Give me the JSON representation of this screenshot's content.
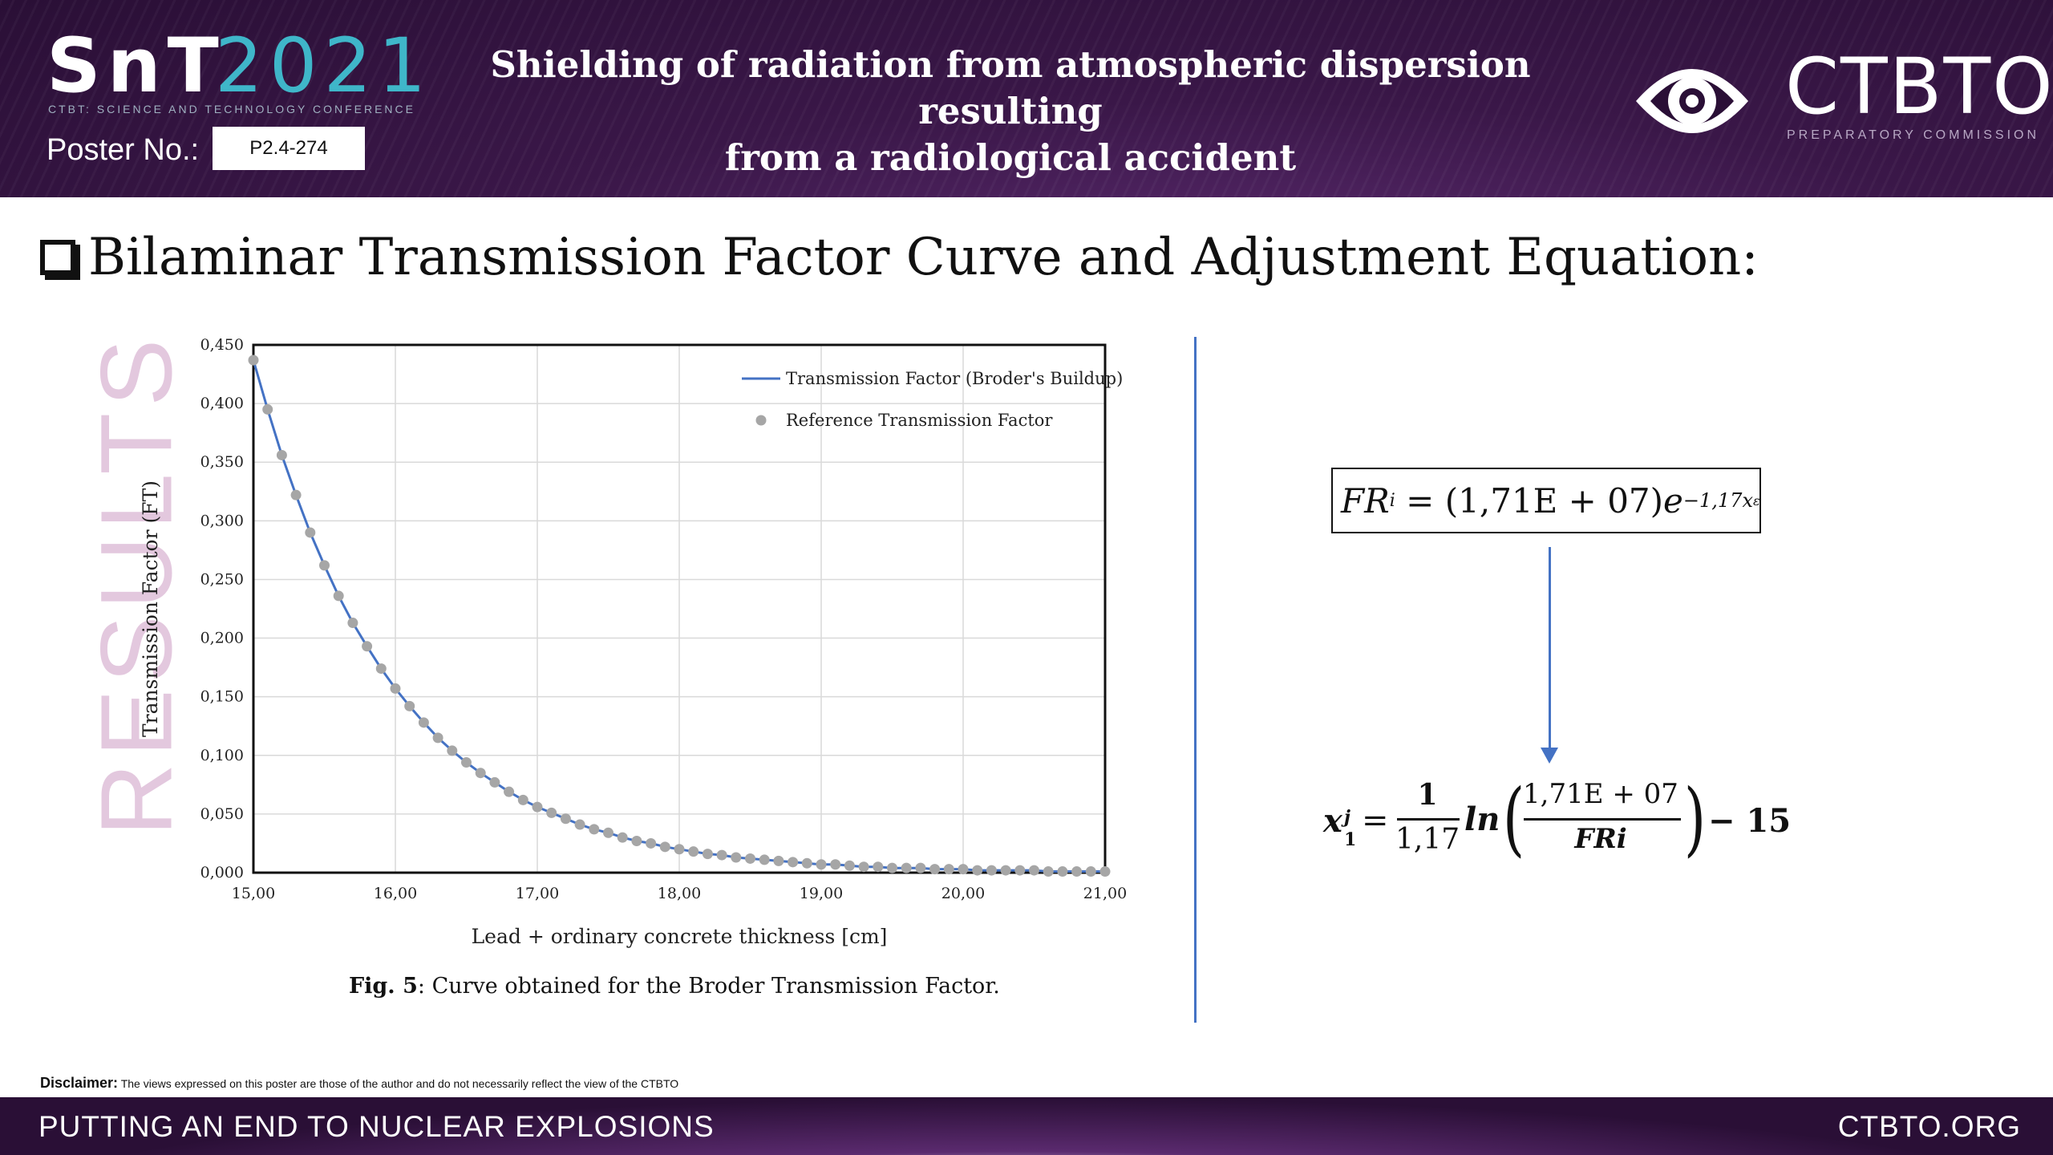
{
  "header": {
    "conference_logo": "SnT",
    "conference_year": "2021",
    "conference_subtitle": "CTBT: SCIENCE AND TECHNOLOGY CONFERENCE",
    "poster_label": "Poster No.:",
    "poster_number": "P2.4-274",
    "title_line1": "Shielding of radiation from atmospheric dispersion resulting",
    "title_line2": "from a radiological accident",
    "org_name": "CTBTO",
    "org_subtitle": "PREPARATORY COMMISSION",
    "org_logo_icon": "eye-logo-icon"
  },
  "side_label": "RESULTS",
  "section": {
    "icon": "checkbox-icon",
    "title": "Bilaminar Transmission Factor Curve and Adjustment Equation:"
  },
  "caption": {
    "label": "Fig. 5",
    "text": ": Curve obtained for the Broder Transmission Factor."
  },
  "equations": {
    "eq1": {
      "lhs": "FR",
      "lhs_sub": "i",
      "equals": "=",
      "coef": "(1,71E + 07)",
      "base": "e",
      "exponent": "−1,17x",
      "exponent_sub": "ε"
    },
    "eq2": {
      "var": "x",
      "var_sup": "j",
      "var_sub": "1",
      "equals": "=",
      "frac1_num": "1",
      "frac1_den": "1,17",
      "fn": "ln",
      "frac2_num": "1,71E + 07",
      "frac2_den": "FRi",
      "tail": "− 15"
    },
    "arrow_icon": "arrow-down-icon"
  },
  "disclaimer": {
    "label": "Disclaimer:",
    "text": "The views expressed on this poster are those of the author and do not necessarily reflect the view of the CTBTO"
  },
  "footer": {
    "left": "PUTTING AN END TO NUCLEAR EXPLOSIONS",
    "right": "CTBTO.ORG"
  },
  "colors": {
    "line": "#4472c4",
    "marker": "#a6a6a6",
    "header_bg": "#2a0f36",
    "year_accent": "#3fb6c9",
    "side_label": "#e3c8de"
  },
  "chart_data": {
    "type": "line",
    "title": "",
    "xlabel": "Lead  + ordinary concrete thickness [cm]",
    "ylabel": "Transmission Factor (FT)",
    "xlim": [
      15.0,
      21.0
    ],
    "ylim": [
      0.0,
      0.45
    ],
    "xticks": [
      15.0,
      16.0,
      17.0,
      18.0,
      19.0,
      20.0,
      21.0
    ],
    "xtick_labels": [
      "15,00",
      "16,00",
      "17,00",
      "18,00",
      "19,00",
      "20,00",
      "21,00"
    ],
    "yticks": [
      0.0,
      0.05,
      0.1,
      0.15,
      0.2,
      0.25,
      0.3,
      0.35,
      0.4,
      0.45
    ],
    "ytick_labels": [
      "0,000",
      "0,050",
      "0,100",
      "0,150",
      "0,200",
      "0,250",
      "0,300",
      "0,350",
      "0,400",
      "0,450"
    ],
    "grid": true,
    "legend_position": "top-right",
    "x": [
      15.0,
      15.1,
      15.2,
      15.3,
      15.4,
      15.5,
      15.6,
      15.7,
      15.8,
      15.9,
      16.0,
      16.1,
      16.2,
      16.3,
      16.4,
      16.5,
      16.6,
      16.7,
      16.8,
      16.9,
      17.0,
      17.1,
      17.2,
      17.3,
      17.4,
      17.5,
      17.6,
      17.7,
      17.8,
      17.9,
      18.0,
      18.1,
      18.2,
      18.3,
      18.4,
      18.5,
      18.6,
      18.7,
      18.8,
      18.9,
      19.0,
      19.1,
      19.2,
      19.3,
      19.4,
      19.5,
      19.6,
      19.7,
      19.8,
      19.9,
      20.0,
      20.1,
      20.2,
      20.3,
      20.4,
      20.5,
      20.6,
      20.7,
      20.8,
      20.9,
      21.0
    ],
    "series": [
      {
        "name": "Transmission Factor (Broder's Buildup)",
        "kind": "line",
        "color": "#4472c4",
        "values": [
          0.437,
          0.395,
          0.356,
          0.322,
          0.29,
          0.262,
          0.236,
          0.213,
          0.193,
          0.174,
          0.157,
          0.142,
          0.128,
          0.115,
          0.104,
          0.094,
          0.085,
          0.077,
          0.069,
          0.062,
          0.056,
          0.051,
          0.046,
          0.041,
          0.037,
          0.034,
          0.03,
          0.027,
          0.025,
          0.022,
          0.02,
          0.018,
          0.016,
          0.015,
          0.013,
          0.012,
          0.011,
          0.01,
          0.009,
          0.008,
          0.007,
          0.007,
          0.006,
          0.005,
          0.005,
          0.004,
          0.004,
          0.004,
          0.003,
          0.003,
          0.003,
          0.002,
          0.002,
          0.002,
          0.002,
          0.002,
          0.001,
          0.001,
          0.001,
          0.001,
          0.001
        ]
      },
      {
        "name": "Reference Transmission Factor",
        "kind": "scatter",
        "color": "#a6a6a6",
        "values": [
          0.437,
          0.395,
          0.356,
          0.322,
          0.29,
          0.262,
          0.236,
          0.213,
          0.193,
          0.174,
          0.157,
          0.142,
          0.128,
          0.115,
          0.104,
          0.094,
          0.085,
          0.077,
          0.069,
          0.062,
          0.056,
          0.051,
          0.046,
          0.041,
          0.037,
          0.034,
          0.03,
          0.027,
          0.025,
          0.022,
          0.02,
          0.018,
          0.016,
          0.015,
          0.013,
          0.012,
          0.011,
          0.01,
          0.009,
          0.008,
          0.007,
          0.007,
          0.006,
          0.005,
          0.005,
          0.004,
          0.004,
          0.004,
          0.003,
          0.003,
          0.003,
          0.002,
          0.002,
          0.002,
          0.002,
          0.002,
          0.001,
          0.001,
          0.001,
          0.001,
          0.001
        ]
      }
    ]
  }
}
